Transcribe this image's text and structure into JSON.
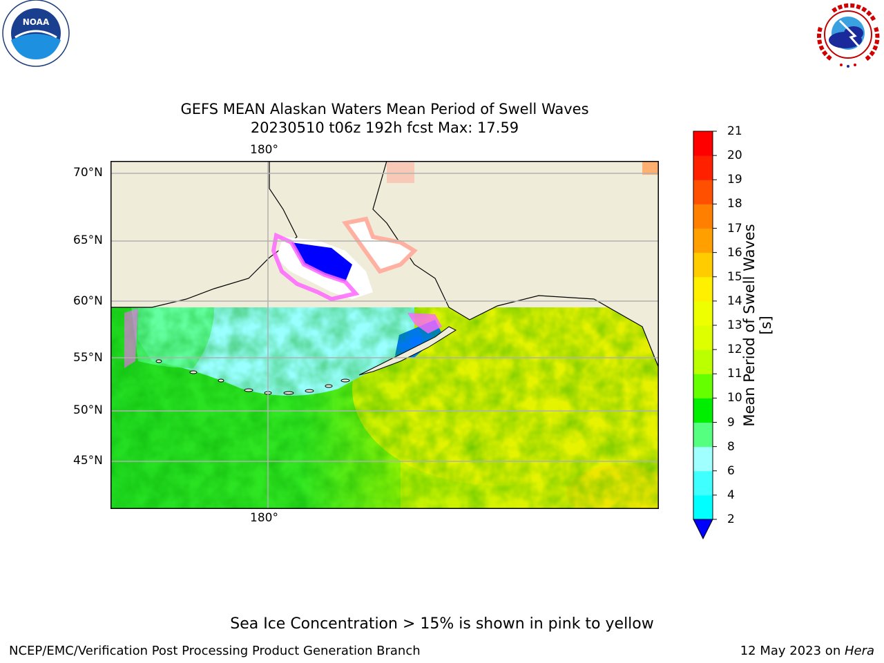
{
  "header": {
    "title_line1": "GEFS MEAN Alaskan Waters Mean Period of Swell Waves",
    "title_line2": "20230510 t06z 192h fcst   Max: 17.59"
  },
  "logos": {
    "left": {
      "icon": "noaa-logo",
      "text": "NOAA"
    },
    "right": {
      "icon": "nws-logo",
      "text": "NATIONAL WEATHER SERVICE"
    }
  },
  "map": {
    "lon_labels": [
      "180°",
      "180°"
    ],
    "lat_labels": [
      "70°N",
      "65°N",
      "60°N",
      "55°N",
      "50°N",
      "45°N"
    ],
    "land_color": "#efedd9",
    "grid_color": "#b0b0b0"
  },
  "colorbar": {
    "label": "Mean Period of Swell Waves [s]",
    "ticks": [
      "2",
      "4",
      "6",
      "8",
      "9",
      "10",
      "11",
      "12",
      "13",
      "14",
      "15",
      "16",
      "17",
      "18",
      "19",
      "20",
      "21"
    ],
    "colors": [
      "#0074ff",
      "#00ffff",
      "#40ffff",
      "#a0ffff",
      "#55ff80",
      "#00ee00",
      "#66ff00",
      "#bbff00",
      "#ddff00",
      "#eeff00",
      "#fff000",
      "#ffcc00",
      "#ffa000",
      "#ff7f00",
      "#ff5000",
      "#ff2000",
      "#ff0000"
    ],
    "under_color": "#0000ff"
  },
  "footer": {
    "note": "Sea Ice Concentration > 15% is shown in pink to yellow",
    "credit": "NCEP/EMC/Verification Post Processing Product Generation Branch",
    "date_prefix": "12 May 2023 on ",
    "machine": "Hera"
  }
}
